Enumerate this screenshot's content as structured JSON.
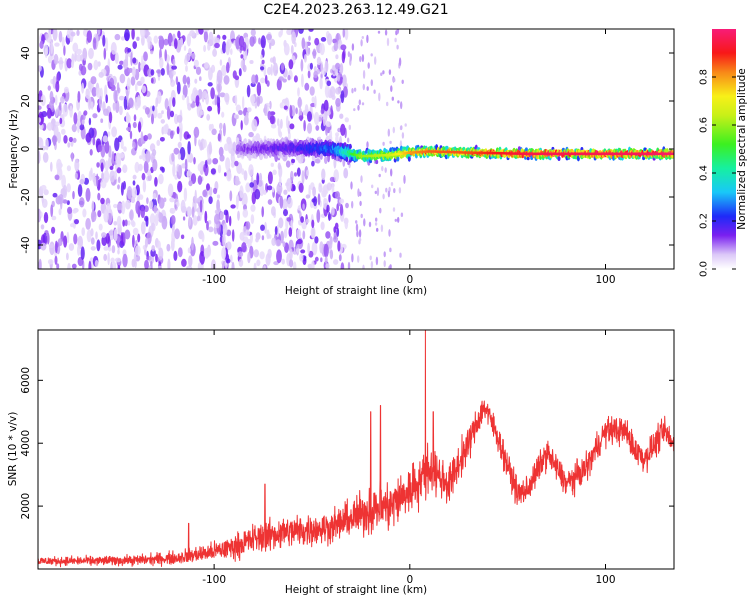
{
  "title": "C2E4.2023.263.12.49.G21",
  "chart_data": [
    {
      "type": "heatmap",
      "xlabel": "Height of straight line (km)",
      "ylabel": "Frequency (Hz)",
      "xlim": [
        -190,
        135
      ],
      "ylim": [
        -50,
        50
      ],
      "xticks": [
        -100,
        0,
        100
      ],
      "yticks": [
        -40,
        -20,
        0,
        20,
        40
      ],
      "colorbar": {
        "label": "Normalized spectral amplitude",
        "range": [
          0,
          1
        ],
        "ticks": [
          0.0,
          0.2,
          0.4,
          0.6,
          0.8
        ]
      },
      "noise_region_x": [
        -190,
        -32
      ],
      "signal_band": {
        "x_start": -88,
        "frequency_hz": [
          [
            -88,
            0
          ],
          [
            -60,
            0.5
          ],
          [
            -40,
            0
          ],
          [
            -25,
            -3
          ],
          [
            -10,
            -2.5
          ],
          [
            0,
            -1.5
          ],
          [
            10,
            -1
          ],
          [
            30,
            -1.5
          ],
          [
            60,
            -2
          ],
          [
            100,
            -2
          ],
          [
            135,
            -2
          ]
        ],
        "peak_amplitude": [
          [
            -88,
            0.12
          ],
          [
            -60,
            0.18
          ],
          [
            -40,
            0.28
          ],
          [
            -25,
            0.6
          ],
          [
            -10,
            0.65
          ],
          [
            0,
            0.8
          ],
          [
            10,
            0.85
          ],
          [
            30,
            0.86
          ],
          [
            60,
            0.95
          ],
          [
            100,
            0.96
          ],
          [
            135,
            0.98
          ]
        ]
      },
      "grid": false
    },
    {
      "type": "line",
      "xlabel": "Height of straight line (km)",
      "ylabel": "SNR (10 * v/v)",
      "xlim": [
        -190,
        135
      ],
      "ylim": [
        0,
        7600
      ],
      "xticks": [
        -100,
        0,
        100
      ],
      "yticks": [
        2000,
        4000,
        6000
      ],
      "grid": false,
      "color": "#ee3333",
      "envelope": {
        "x": [
          -190,
          -160,
          -140,
          -120,
          -110,
          -100,
          -90,
          -80,
          -70,
          -60,
          -50,
          -40,
          -30,
          -20,
          -10,
          0,
          10,
          20,
          30,
          38,
          45,
          55,
          60,
          70,
          80,
          90,
          100,
          110,
          115,
          120,
          130,
          135
        ],
        "mean": [
          250,
          260,
          280,
          350,
          450,
          550,
          700,
          950,
          1100,
          1200,
          1250,
          1350,
          1600,
          1900,
          2000,
          2500,
          3200,
          2700,
          4000,
          5200,
          4200,
          2400,
          2500,
          3700,
          2700,
          3200,
          4400,
          4400,
          3800,
          3500,
          4400,
          3900
        ],
        "spread": [
          150,
          160,
          180,
          230,
          280,
          330,
          420,
          520,
          560,
          580,
          560,
          560,
          650,
          850,
          900,
          900,
          900,
          700,
          600,
          500,
          500,
          500,
          500,
          500,
          500,
          500,
          500,
          500,
          500,
          500,
          500,
          500
        ]
      },
      "spikes": [
        {
          "x": -113,
          "y": 1450
        },
        {
          "x": -74,
          "y": 2700
        },
        {
          "x": -20,
          "y": 5000
        },
        {
          "x": -15,
          "y": 5200
        },
        {
          "x": 8,
          "y": 7600
        },
        {
          "x": 12,
          "y": 5000
        }
      ]
    }
  ]
}
